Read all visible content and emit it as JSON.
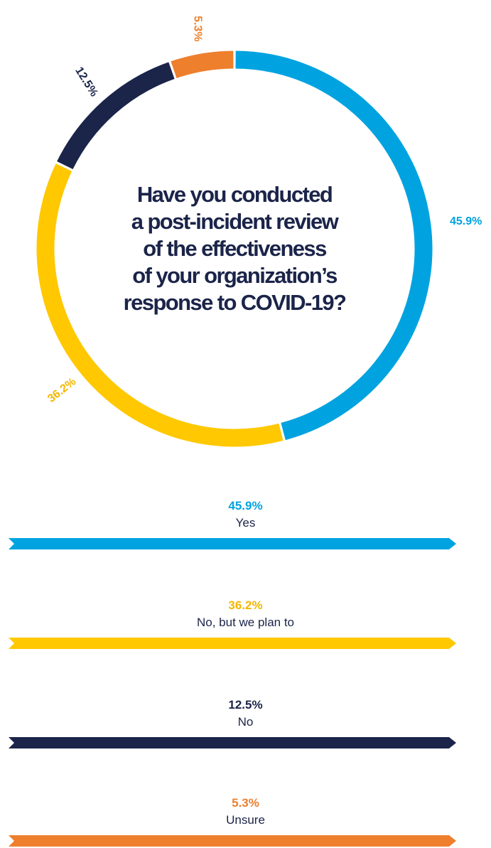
{
  "question_lines": [
    "Have you conducted",
    "a post-incident review",
    "of the effectiveness",
    "of your organization’s",
    "response to COVID-19?"
  ],
  "chart_data": {
    "type": "pie",
    "title": "Have you conducted a post-incident review of the effectiveness of your organization’s response to COVID-19?",
    "slices": [
      {
        "label": "Yes",
        "value": 45.9,
        "display": "45.9%",
        "color": "#00a3e0"
      },
      {
        "label": "No, but we plan to",
        "value": 36.2,
        "display": "36.2%",
        "color": "#ffc800"
      },
      {
        "label": "No",
        "value": 12.5,
        "display": "12.5%",
        "color": "#1b2449"
      },
      {
        "label": "Unsure",
        "value": 5.3,
        "display": "5.3%",
        "color": "#ee7f2d"
      }
    ]
  }
}
